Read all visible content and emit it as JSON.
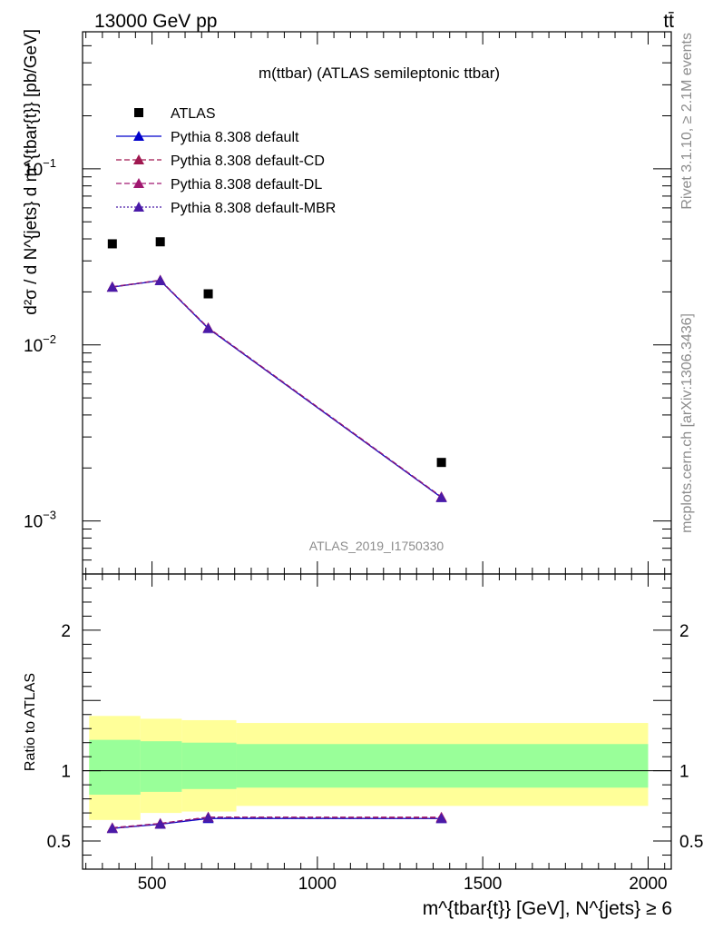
{
  "header": {
    "energy_label": "13000 GeV pp",
    "process_label": "tt̄"
  },
  "side_labels": {
    "rivet": "Rivet 3.1.10, ≥ 2.1M events",
    "mcplots": "mcplots.cern.ch [arXiv:1306.3436]"
  },
  "chart_data": [
    {
      "type": "scatter",
      "title": "m(ttbar) (ATLAS semileptonic ttbar)",
      "analysis_label": "ATLAS_2019_I1750330",
      "ylabel": "d²σ / d N^{jets} d m^{tbar{t}} [pb/GeV]",
      "yscale": "log",
      "ylim": [
        0.0005,
        0.6
      ],
      "xlim": [
        290,
        2070
      ],
      "y_tick_labels": [
        "10^{-3}",
        "10^{-2}",
        "10^{-1}"
      ],
      "legend": {
        "placement": "top-left"
      },
      "series": [
        {
          "name": "ATLAS",
          "color": "#000000",
          "marker": "square",
          "line": "none",
          "x": [
            380,
            525,
            670,
            1375
          ],
          "y": [
            0.0375,
            0.0385,
            0.0195,
            0.00215
          ]
        },
        {
          "name": "Pythia 8.308 default",
          "color": "#0000cc",
          "marker": "triangle",
          "line": "solid",
          "x": [
            380,
            525,
            670,
            1375
          ],
          "y": [
            0.0213,
            0.0232,
            0.0124,
            0.00136
          ]
        },
        {
          "name": "Pythia 8.308 default-CD",
          "color": "#a01850",
          "marker": "triangle",
          "line": "dashed",
          "x": [
            380,
            525,
            670,
            1375
          ],
          "y": [
            0.0213,
            0.0233,
            0.0125,
            0.00137
          ]
        },
        {
          "name": "Pythia 8.308 default-DL",
          "color": "#a01870",
          "marker": "triangle",
          "line": "dashed",
          "x": [
            380,
            525,
            670,
            1375
          ],
          "y": [
            0.0214,
            0.0233,
            0.0125,
            0.00137
          ]
        },
        {
          "name": "Pythia 8.308 default-MBR",
          "color": "#4a1aa8",
          "marker": "triangle",
          "line": "dotted",
          "x": [
            380,
            525,
            670,
            1375
          ],
          "y": [
            0.0213,
            0.0232,
            0.0124,
            0.00136
          ]
        }
      ]
    },
    {
      "type": "line",
      "ylabel": "Ratio to ATLAS",
      "xlabel": "m^{tbar{t}} [GeV], N^{jets} ≥ 6",
      "ylim": [
        0.3,
        2.4
      ],
      "xlim": [
        290,
        2070
      ],
      "x_ticks": [
        500,
        1000,
        1500,
        2000
      ],
      "y_ticks": [
        0.5,
        1,
        2
      ],
      "reference_line": 1,
      "bands": {
        "bins": [
          [
            310,
            465
          ],
          [
            465,
            590
          ],
          [
            590,
            755
          ],
          [
            755,
            2000
          ]
        ],
        "outer": {
          "color": "#ffff99",
          "lo": [
            0.65,
            0.7,
            0.71,
            0.75
          ],
          "hi": [
            1.39,
            1.37,
            1.36,
            1.34
          ]
        },
        "inner": {
          "color": "#99ff99",
          "lo": [
            0.83,
            0.85,
            0.87,
            0.88
          ],
          "hi": [
            1.22,
            1.21,
            1.2,
            1.19
          ]
        }
      },
      "series": [
        {
          "name": "Pythia 8.308 default",
          "x": [
            380,
            525,
            670,
            1375
          ],
          "y": [
            0.59,
            0.62,
            0.66,
            0.66
          ]
        },
        {
          "name": "Pythia 8.308 default-CD",
          "x": [
            380,
            525,
            670,
            1375
          ],
          "y": [
            0.59,
            0.625,
            0.67,
            0.665
          ]
        },
        {
          "name": "Pythia 8.308 default-DL",
          "x": [
            380,
            525,
            670,
            1375
          ],
          "y": [
            0.595,
            0.625,
            0.67,
            0.67
          ]
        },
        {
          "name": "Pythia 8.308 default-MBR",
          "x": [
            380,
            525,
            670,
            1375
          ],
          "y": [
            0.59,
            0.62,
            0.665,
            0.66
          ]
        }
      ]
    }
  ]
}
